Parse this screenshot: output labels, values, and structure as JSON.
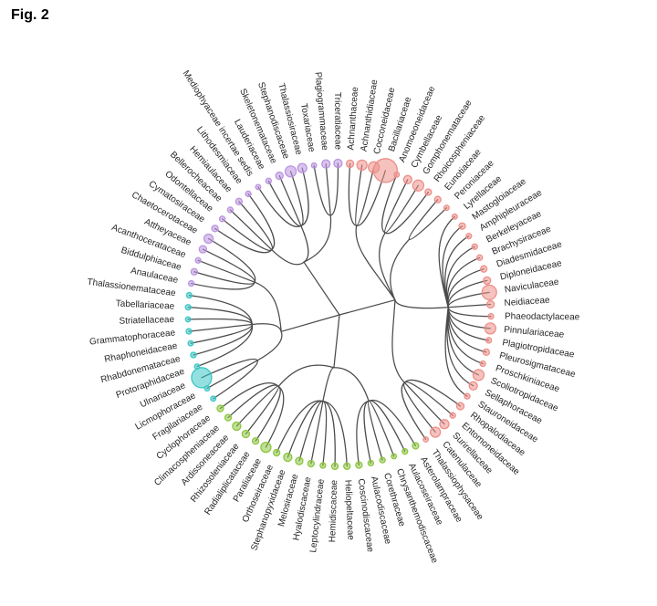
{
  "figure": {
    "label": "Fig. 2"
  },
  "chart_data": {
    "type": "circular-cladogram",
    "description": "Radial cladogram of diatom families; tip dot color marks major group, dot size varies by family",
    "layout": {
      "start_angle": 4,
      "center": [
        372,
        345
      ],
      "tip_radius": 166,
      "label_radius": 181,
      "branch_color": "#4b4b4b"
    },
    "groups": [
      {
        "name": "pink",
        "color": "#ed8f88"
      },
      {
        "name": "green",
        "color": "#8cc63f"
      },
      {
        "name": "cyan",
        "color": "#3cc7c7"
      },
      {
        "name": "purple",
        "color": "#bb93e0"
      }
    ],
    "tips": [
      {
        "n": "Achnanthaceae",
        "g": 0,
        "s": 4
      },
      {
        "n": "Achnanthidiaceae",
        "g": 0,
        "s": 5.5
      },
      {
        "n": "Cocconeidaceae",
        "g": 0,
        "s": 6
      },
      {
        "n": "Bacillariaceae",
        "g": 0,
        "s": 13
      },
      {
        "n": "Anomoeoneidaceae",
        "g": 0,
        "s": 2.8
      },
      {
        "n": "Cymbellaceae",
        "g": 0,
        "s": 4.5
      },
      {
        "n": "Gomphonemataceae",
        "g": 0,
        "s": 6
      },
      {
        "n": "Rhoicospheniaceae",
        "g": 0,
        "s": 3.5
      },
      {
        "n": "Eunotiaceae",
        "g": 0,
        "s": 3.5
      },
      {
        "n": "Peroniaceae",
        "g": 0,
        "s": 2.8
      },
      {
        "n": "Lyrellaceae",
        "g": 0,
        "s": 2.8
      },
      {
        "n": "Mastogloiaceae",
        "g": 0,
        "s": 3.5
      },
      {
        "n": "Amphipleuraceae",
        "g": 0,
        "s": 3
      },
      {
        "n": "Berkeleyaceae",
        "g": 0,
        "s": 3
      },
      {
        "n": "Brachysiraceae",
        "g": 0,
        "s": 3
      },
      {
        "n": "Diadesmidaceae",
        "g": 0,
        "s": 3.5
      },
      {
        "n": "Diploneidaceae",
        "g": 0,
        "s": 4
      },
      {
        "n": "Naviculaceae",
        "g": 0,
        "s": 8
      },
      {
        "n": "Neidiaceae",
        "g": 0,
        "s": 4
      },
      {
        "n": "Phaeodactylaceae",
        "g": 0,
        "s": 3
      },
      {
        "n": "Pinnulariaceae",
        "g": 0,
        "s": 6
      },
      {
        "n": "Plagiotropidaceae",
        "g": 0,
        "s": 3
      },
      {
        "n": "Pleurosigmataceae",
        "g": 0,
        "s": 3.5
      },
      {
        "n": "Proschkiniaceae",
        "g": 0,
        "s": 3
      },
      {
        "n": "Scoliotropidaceae",
        "g": 0,
        "s": 6
      },
      {
        "n": "Sellaphoraceae",
        "g": 0,
        "s": 4.5
      },
      {
        "n": "Stauroneidaceae",
        "g": 0,
        "s": 3
      },
      {
        "n": "Rhopalodiaceae",
        "g": 0,
        "s": 4
      },
      {
        "n": "Entomoneidaceae",
        "g": 0,
        "s": 3
      },
      {
        "n": "Surirellaceae",
        "g": 0,
        "s": 5
      },
      {
        "n": "Catenulaceae",
        "g": 0,
        "s": 5.5
      },
      {
        "n": "Thalassiophysaceae",
        "g": 0,
        "s": 2.8
      },
      {
        "n": "Asterolampraceae",
        "g": 1,
        "s": 3.5
      },
      {
        "n": "Aulacoseiraceae",
        "g": 1,
        "s": 3
      },
      {
        "n": "Chrysanthemodiscaceae",
        "g": 1,
        "s": 2.8
      },
      {
        "n": "Corethraceae",
        "g": 1,
        "s": 3
      },
      {
        "n": "Aulacodiscaceae",
        "g": 1,
        "s": 3
      },
      {
        "n": "Coscinodiscaceae",
        "g": 1,
        "s": 3.5
      },
      {
        "n": "Heliopeltaceae",
        "g": 1,
        "s": 3.5
      },
      {
        "n": "Hemidiscaceae",
        "g": 1,
        "s": 3.5
      },
      {
        "n": "Leptocylindraceae",
        "g": 1,
        "s": 3
      },
      {
        "n": "Hyalodiscaceae",
        "g": 1,
        "s": 3.5
      },
      {
        "n": "Melosiraceae",
        "g": 1,
        "s": 4
      },
      {
        "n": "Stephanopyxidaceae",
        "g": 1,
        "s": 4.5
      },
      {
        "n": "Orthoseiraceae",
        "g": 1,
        "s": 3.5
      },
      {
        "n": "Paraliaceae",
        "g": 1,
        "s": 5.5
      },
      {
        "n": "Radialiplicataceae",
        "g": 1,
        "s": 3.5
      },
      {
        "n": "Rhizosoleniaceae",
        "g": 1,
        "s": 4
      },
      {
        "n": "Ardissoneaceae",
        "g": 1,
        "s": 4.5
      },
      {
        "n": "Climacospheniaceae",
        "g": 1,
        "s": 3.5
      },
      {
        "n": "Cyclophoraceae",
        "g": 1,
        "s": 3.5
      },
      {
        "n": "Fragilariaceae",
        "g": 2,
        "s": 2.8
      },
      {
        "n": "Licmophoraceae",
        "g": 2,
        "s": 2.8
      },
      {
        "n": "Ulnariaceae",
        "g": 2,
        "s": 11
      },
      {
        "n": "Protoraphidaceae",
        "g": 2,
        "s": 2.8
      },
      {
        "n": "Rhabdonemataceae",
        "g": 2,
        "s": 3
      },
      {
        "n": "Rhaphoneidaceae",
        "g": 2,
        "s": 2.8
      },
      {
        "n": "Grammatophoraceae",
        "g": 2,
        "s": 3
      },
      {
        "n": "Striatellaceae",
        "g": 2,
        "s": 2.8
      },
      {
        "n": "Tabellariaceae",
        "g": 2,
        "s": 3
      },
      {
        "n": "Thalassionemataceae",
        "g": 2,
        "s": 3
      },
      {
        "n": "Anaulaceae",
        "g": 3,
        "s": 3
      },
      {
        "n": "Biddulphiaceae",
        "g": 3,
        "s": 3.5
      },
      {
        "n": "Acanthocerataceae",
        "g": 3,
        "s": 3
      },
      {
        "n": "Attheyaceae",
        "g": 3,
        "s": 4
      },
      {
        "n": "Chaetocerotaceae",
        "g": 3,
        "s": 5
      },
      {
        "n": "Cymatosiraceae",
        "g": 3,
        "s": 3.5
      },
      {
        "n": "Odontellaceae",
        "g": 3,
        "s": 3
      },
      {
        "n": "Bellerocheaceae",
        "g": 3,
        "s": 3
      },
      {
        "n": "Hemiaulaceae",
        "g": 3,
        "s": 3.5
      },
      {
        "n": "Lithodesmiaceae",
        "g": 3,
        "s": 3
      },
      {
        "n": "Mediophyaceae incertae sedis",
        "g": 3,
        "s": 2.8
      },
      {
        "n": "Lauderiaceae",
        "g": 3,
        "s": 3
      },
      {
        "n": "Skeletonemataceae",
        "g": 3,
        "s": 4
      },
      {
        "n": "Stephanodiscaceae",
        "g": 3,
        "s": 6
      },
      {
        "n": "Thalassiosiraceae",
        "g": 3,
        "s": 5
      },
      {
        "n": "Toxariaceae",
        "g": 3,
        "s": 2.8
      },
      {
        "n": "Plagiogrammaceae",
        "g": 3,
        "s": 4.5
      },
      {
        "n": "Triceratiaceae",
        "g": 3,
        "s": 4.5
      }
    ],
    "clades": [
      {
        "name": "pink-clade",
        "angle": 75,
        "r": 0.38,
        "sub": [
          [
            0,
            3,
            0.6
          ],
          [
            4,
            7,
            0.62
          ],
          [
            8,
            9,
            0.68
          ],
          [
            10,
            26,
            0.72
          ],
          [
            27,
            31,
            0.62
          ]
        ]
      },
      {
        "name": "green-clade",
        "angle": 186,
        "r": 0.35,
        "sub": [
          [
            32,
            37,
            0.6
          ],
          [
            38,
            44,
            0.58
          ],
          [
            45,
            50,
            0.62
          ]
        ]
      },
      {
        "name": "left-clade",
        "angle": 254,
        "r": 0.4,
        "sub": [
          [
            51,
            53,
            0.62
          ],
          [
            54,
            60,
            0.58
          ],
          [
            61,
            65,
            0.6
          ]
        ]
      },
      {
        "name": "purple-clade",
        "angle": 326,
        "r": 0.42,
        "sub": [
          [
            66,
            70,
            0.62
          ],
          [
            71,
            75,
            0.64
          ],
          [
            76,
            78,
            0.66
          ]
        ]
      }
    ]
  }
}
